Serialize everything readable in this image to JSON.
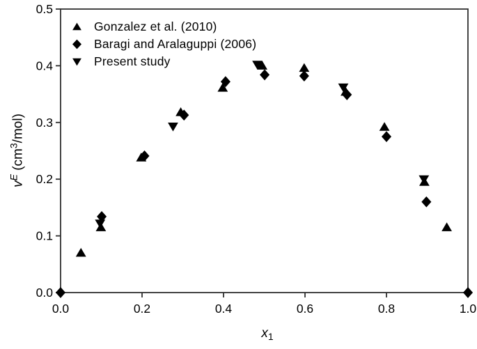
{
  "figure": {
    "background": "#ffffff",
    "axis_color": "#2f2f2f",
    "text_color": "#000000",
    "marker_color": "#000000"
  },
  "legend": {
    "position": "top-left-inside",
    "items": [
      {
        "label": "Gonzalez et al. (2010)",
        "marker": "triangle-up"
      },
      {
        "label": "Baragi and Aralaguppi (2006)",
        "marker": "diamond"
      },
      {
        "label": "Present study",
        "marker": "triangle-down"
      }
    ]
  },
  "axis_labels": {
    "x_base": "x",
    "x_sub": "1",
    "y_base": "v",
    "y_sup": "E",
    "y_unit_pre": " (cm",
    "y_unit_sup": "3",
    "y_unit_post": "/mol)"
  },
  "chart_data": {
    "type": "scatter",
    "title": "",
    "xlabel": "x1",
    "ylabel": "vE (cm3/mol)",
    "xlim": [
      0.0,
      1.0
    ],
    "ylim": [
      0.0,
      0.5
    ],
    "x_ticks": [
      0.0,
      0.2,
      0.4,
      0.6,
      0.8,
      1.0
    ],
    "x_tick_labels": [
      "0.0",
      "0.2",
      "0.4",
      "0.6",
      "0.8",
      "1.0"
    ],
    "y_ticks": [
      0.0,
      0.1,
      0.2,
      0.3,
      0.4,
      0.5
    ],
    "y_tick_labels": [
      "0.0",
      "0.1",
      "0.2",
      "0.3",
      "0.4",
      "0.5"
    ],
    "grid": false,
    "legend_position": "upper left",
    "series": [
      {
        "name": "Gonzalez et al. (2010)",
        "marker": "triangle-up",
        "color": "#000000",
        "points": [
          [
            0.05,
            0.07
          ],
          [
            0.099,
            0.115
          ],
          [
            0.198,
            0.238
          ],
          [
            0.295,
            0.318
          ],
          [
            0.398,
            0.361
          ],
          [
            0.495,
            0.4
          ],
          [
            0.598,
            0.396
          ],
          [
            0.7,
            0.354
          ],
          [
            0.795,
            0.292
          ],
          [
            0.893,
            0.195
          ],
          [
            0.948,
            0.115
          ]
        ]
      },
      {
        "name": "Baragi and Aralaguppi (2006)",
        "marker": "diamond",
        "color": "#000000",
        "points": [
          [
            0.0,
            0.0
          ],
          [
            0.101,
            0.134
          ],
          [
            0.206,
            0.241
          ],
          [
            0.303,
            0.313
          ],
          [
            0.405,
            0.372
          ],
          [
            0.501,
            0.384
          ],
          [
            0.598,
            0.382
          ],
          [
            0.703,
            0.349
          ],
          [
            0.8,
            0.275
          ],
          [
            0.898,
            0.16
          ],
          [
            1.0,
            0.0
          ]
        ]
      },
      {
        "name": "Present study",
        "marker": "triangle-down",
        "color": "#000000",
        "points": [
          [
            0.097,
            0.122
          ],
          [
            0.276,
            0.293
          ],
          [
            0.483,
            0.402
          ],
          [
            0.694,
            0.362
          ],
          [
            0.892,
            0.2
          ]
        ]
      }
    ]
  }
}
